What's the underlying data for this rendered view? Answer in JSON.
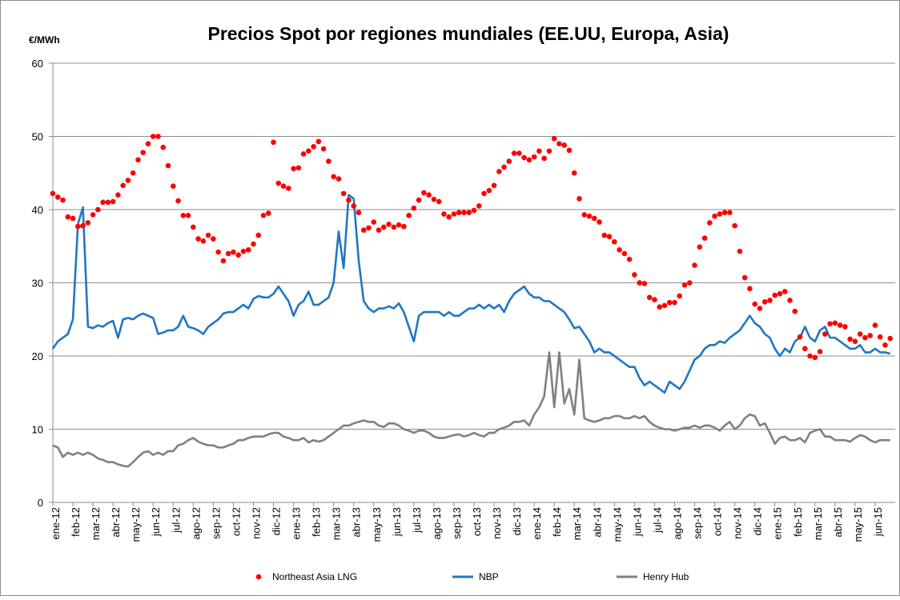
{
  "chart_data": {
    "type": "line",
    "title": "Precios Spot por regiones mundiales (EE.UU, Europa, Asia)",
    "y_label": "€/MWh",
    "legend": "bottom",
    "grid": true,
    "ylim": [
      0,
      60
    ],
    "yticks": [
      0,
      10,
      20,
      30,
      40,
      50,
      60
    ],
    "xlim": [
      0,
      42
    ],
    "xticks": [
      {
        "value": 0,
        "label": "ene-12"
      },
      {
        "value": 1,
        "label": "feb-12"
      },
      {
        "value": 2,
        "label": "mar-12"
      },
      {
        "value": 3,
        "label": "abr-12"
      },
      {
        "value": 4,
        "label": "may-12"
      },
      {
        "value": 5,
        "label": "jun-12"
      },
      {
        "value": 6,
        "label": "jul-12"
      },
      {
        "value": 7,
        "label": "ago-12"
      },
      {
        "value": 8,
        "label": "sep-12"
      },
      {
        "value": 9,
        "label": "oct-12"
      },
      {
        "value": 10,
        "label": "nov-12"
      },
      {
        "value": 11,
        "label": "dic-12"
      },
      {
        "value": 12,
        "label": "ene-13"
      },
      {
        "value": 13,
        "label": "feb-13"
      },
      {
        "value": 14,
        "label": "mar-13"
      },
      {
        "value": 15,
        "label": "abr-13"
      },
      {
        "value": 16,
        "label": "may-13"
      },
      {
        "value": 17,
        "label": "jun-13"
      },
      {
        "value": 18,
        "label": "jul-13"
      },
      {
        "value": 19,
        "label": "ago-13"
      },
      {
        "value": 20,
        "label": "sep-13"
      },
      {
        "value": 21,
        "label": "oct-13"
      },
      {
        "value": 22,
        "label": "nov-13"
      },
      {
        "value": 23,
        "label": "dic-13"
      },
      {
        "value": 24,
        "label": "ene-14"
      },
      {
        "value": 25,
        "label": "feb-14"
      },
      {
        "value": 26,
        "label": "mar-14"
      },
      {
        "value": 27,
        "label": "abr-14"
      },
      {
        "value": 28,
        "label": "may-14"
      },
      {
        "value": 29,
        "label": "jun-14"
      },
      {
        "value": 30,
        "label": "jul-14"
      },
      {
        "value": 31,
        "label": "ago-14"
      },
      {
        "value": 32,
        "label": "sep-14"
      },
      {
        "value": 33,
        "label": "oct-14"
      },
      {
        "value": 34,
        "label": "nov-14"
      },
      {
        "value": 35,
        "label": "dic-14"
      },
      {
        "value": 36,
        "label": "ene-15"
      },
      {
        "value": 37,
        "label": "feb-15"
      },
      {
        "value": 38,
        "label": "mar-15"
      },
      {
        "value": 39,
        "label": "abr-15"
      },
      {
        "value": 40,
        "label": "may-15"
      },
      {
        "value": 41,
        "label": "jun-15"
      }
    ],
    "x": [
      0,
      0.25,
      0.5,
      0.75,
      1,
      1.25,
      1.5,
      1.75,
      2,
      2.25,
      2.5,
      2.75,
      3,
      3.25,
      3.5,
      3.75,
      4,
      4.25,
      4.5,
      4.75,
      5,
      5.25,
      5.5,
      5.75,
      6,
      6.25,
      6.5,
      6.75,
      7,
      7.25,
      7.5,
      7.75,
      8,
      8.25,
      8.5,
      8.75,
      9,
      9.25,
      9.5,
      9.75,
      10,
      10.25,
      10.5,
      10.75,
      11,
      11.25,
      11.5,
      11.75,
      12,
      12.25,
      12.5,
      12.75,
      13,
      13.25,
      13.5,
      13.75,
      14,
      14.25,
      14.5,
      14.75,
      15,
      15.25,
      15.5,
      15.75,
      16,
      16.25,
      16.5,
      16.75,
      17,
      17.25,
      17.5,
      17.75,
      18,
      18.25,
      18.5,
      18.75,
      19,
      19.25,
      19.5,
      19.75,
      20,
      20.25,
      20.5,
      20.75,
      21,
      21.25,
      21.5,
      21.75,
      22,
      22.25,
      22.5,
      22.75,
      23,
      23.25,
      23.5,
      23.75,
      24,
      24.25,
      24.5,
      24.75,
      25,
      25.25,
      25.5,
      25.75,
      26,
      26.25,
      26.5,
      26.75,
      27,
      27.25,
      27.5,
      27.75,
      28,
      28.25,
      28.5,
      28.75,
      29,
      29.25,
      29.5,
      29.75,
      30,
      30.25,
      30.5,
      30.75,
      31,
      31.25,
      31.5,
      31.75,
      32,
      32.25,
      32.5,
      32.75,
      33,
      33.25,
      33.5,
      33.75,
      34,
      34.25,
      34.5,
      34.75,
      35,
      35.25,
      35.5,
      35.75,
      36,
      36.25,
      36.5,
      36.75,
      37,
      37.25,
      37.5,
      37.75,
      38,
      38.25,
      38.5,
      38.75,
      39,
      39.25,
      39.5,
      39.75,
      40,
      40.25,
      40.5,
      40.75,
      41,
      41.25,
      41.5,
      41.75
    ],
    "series": [
      {
        "name": "Northeast Asia LNG",
        "type": "scatter",
        "color": "#ff0000",
        "values": [
          42.2,
          41.7,
          41.3,
          39,
          38.8,
          37.7,
          37.8,
          38.2,
          39.3,
          40,
          41,
          41,
          41.1,
          42,
          43.3,
          44,
          45,
          46.8,
          47.8,
          49,
          50,
          50,
          48.5,
          46,
          43.2,
          41.2,
          39.2,
          39.2,
          37.6,
          36,
          35.7,
          36.5,
          36,
          34.2,
          33,
          34,
          34.2,
          33.8,
          34.3,
          34.5,
          35.3,
          36.5,
          39.2,
          39.5,
          49.2,
          43.6,
          43.2,
          42.9,
          45.6,
          45.7,
          47.6,
          48,
          48.6,
          49.3,
          48.3,
          46.6,
          44.5,
          44.2,
          42.2,
          41.3,
          40.5,
          39.6,
          37.2,
          37.5,
          38.3,
          37.2,
          37.6,
          38,
          37.6,
          37.9,
          37.7,
          39.2,
          40.2,
          41.3,
          42.3,
          42,
          41.4,
          41.1,
          39.4,
          39,
          39.4,
          39.6,
          39.6,
          39.6,
          39.9,
          40.5,
          42.2,
          42.6,
          43.3,
          45.2,
          45.8,
          46.6,
          47.7,
          47.7,
          47.1,
          46.8,
          47.2,
          48,
          47,
          48,
          49.7,
          49,
          48.8,
          48.1,
          45,
          41.5,
          39.3,
          39.1,
          38.8,
          38.3,
          36.5,
          36.3,
          35.6,
          34.5,
          34,
          33.2,
          31.1,
          30,
          29.9,
          28,
          27.7,
          26.7,
          26.9,
          27.3,
          27.3,
          28.2,
          29.7,
          30,
          32.4,
          34.9,
          36.1,
          38.2,
          39.1,
          39.4,
          39.6,
          39.6,
          37.8,
          34.3,
          30.7,
          29.2,
          27.1,
          26.5,
          27.4,
          27.6,
          28.3,
          28.5,
          28.8,
          27.6,
          26.1,
          22.6,
          21,
          20,
          19.8,
          20.6,
          23,
          24.4,
          24.5,
          24.2,
          24,
          22.3,
          22,
          23,
          22.5,
          22.8,
          24.2,
          22.6,
          21.5,
          22.4
        ]
      },
      {
        "name": "NBP",
        "type": "line",
        "color": "#1f77c4",
        "values": [
          21,
          22,
          22.5,
          23,
          25,
          38,
          40.3,
          24,
          23.8,
          24.2,
          24,
          24.5,
          24.8,
          22.5,
          25,
          25.2,
          25,
          25.5,
          25.8,
          25.5,
          25.2,
          23,
          23.2,
          23.5,
          23.5,
          24,
          25.5,
          24,
          23.8,
          23.5,
          23,
          24,
          24.5,
          25,
          25.8,
          26,
          26,
          26.5,
          27,
          26.5,
          27.8,
          28.2,
          28,
          28,
          28.5,
          29.5,
          28.5,
          27.5,
          25.5,
          27,
          27.5,
          28.8,
          27,
          27,
          27.5,
          28,
          30,
          37,
          32,
          42,
          41.5,
          33,
          27.5,
          26.5,
          26,
          26.5,
          26.5,
          26.8,
          26.5,
          27.2,
          26,
          24,
          22,
          25.5,
          26,
          26,
          26,
          26,
          25.5,
          26,
          25.5,
          25.5,
          26,
          26.5,
          26.5,
          27,
          26.5,
          27,
          26.5,
          27,
          26,
          27.5,
          28.5,
          29,
          29.5,
          28.5,
          28,
          28,
          27.5,
          27.5,
          27,
          26.5,
          26,
          25,
          23.8,
          24,
          23,
          22,
          20.5,
          21,
          20.5,
          20.5,
          20,
          19.5,
          19,
          18.5,
          18.5,
          17,
          16,
          16.5,
          16,
          15.5,
          15,
          16.5,
          16,
          15.5,
          16.5,
          18,
          19.5,
          20,
          21,
          21.5,
          21.5,
          22,
          21.8,
          22.5,
          23,
          23.5,
          24.5,
          25.5,
          24.5,
          24,
          23,
          22.5,
          21,
          20,
          21,
          20.5,
          22,
          22.5,
          24,
          22.5,
          22,
          23.5,
          24,
          22.5,
          22.5,
          22,
          21.5,
          21,
          21,
          21.5,
          20.5,
          20.5,
          21,
          20.5,
          20.5,
          20.3
        ]
      },
      {
        "name": "Henry Hub",
        "type": "line",
        "color": "#808080",
        "values": [
          7.8,
          7.5,
          6.2,
          6.8,
          6.5,
          6.8,
          6.5,
          6.8,
          6.5,
          6,
          5.8,
          5.5,
          5.5,
          5.2,
          5,
          4.9,
          5.5,
          6.2,
          6.8,
          7,
          6.5,
          6.8,
          6.5,
          7,
          7,
          7.8,
          8,
          8.5,
          8.8,
          8.3,
          8,
          7.8,
          7.8,
          7.5,
          7.5,
          7.8,
          8,
          8.5,
          8.5,
          8.8,
          9,
          9,
          9,
          9.3,
          9.5,
          9.5,
          9,
          8.8,
          8.5,
          8.5,
          8.8,
          8.2,
          8.5,
          8.3,
          8.5,
          9,
          9.5,
          10,
          10.5,
          10.5,
          10.8,
          11,
          11.2,
          11,
          11,
          10.5,
          10.3,
          10.8,
          10.8,
          10.5,
          10,
          9.8,
          9.5,
          9.8,
          9.8,
          9.5,
          9,
          8.8,
          8.8,
          9,
          9.2,
          9.3,
          9,
          9.2,
          9.5,
          9.2,
          9,
          9.5,
          9.5,
          10,
          10.2,
          10.5,
          11,
          11,
          11.2,
          10.5,
          12,
          13,
          14.5,
          20.5,
          13,
          20.5,
          13.5,
          15.5,
          12,
          19.5,
          11.5,
          11.2,
          11,
          11.2,
          11.5,
          11.5,
          11.8,
          11.8,
          11.5,
          11.5,
          11.8,
          11.5,
          11.8,
          11,
          10.5,
          10.2,
          10,
          10,
          9.8,
          10,
          10.2,
          10.2,
          10.5,
          10.2,
          10.5,
          10.5,
          10.2,
          9.8,
          10.5,
          11,
          10,
          10.5,
          11.5,
          12,
          11.8,
          10.5,
          10.8,
          9.5,
          8,
          8.8,
          9,
          8.5,
          8.5,
          8.8,
          8.2,
          9.5,
          9.8,
          10,
          9,
          9,
          8.5,
          8.5,
          8.5,
          8.3,
          8.8,
          9.2,
          9,
          8.5,
          8.2,
          8.5,
          8.5,
          8.5
        ]
      }
    ]
  }
}
